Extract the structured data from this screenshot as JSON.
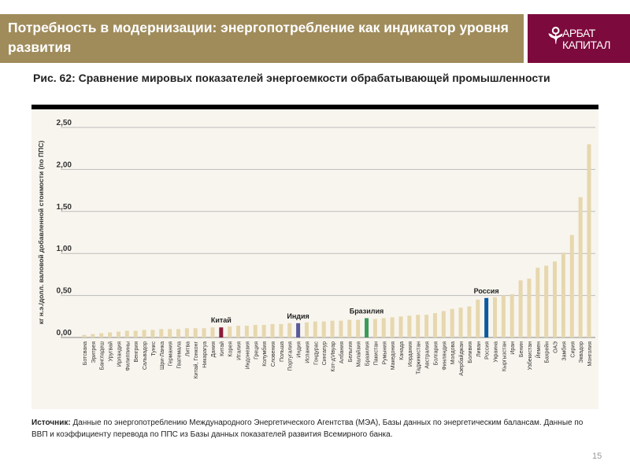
{
  "header": {
    "title": "Потребность в модернизации: энергопотребление как индикатор уровня развития"
  },
  "logo": {
    "line1": "АРБАТ",
    "line2": "КАПИТАЛ"
  },
  "figure": {
    "title": "Рис. 62: Сравнение мировых показателей энергоемкости обрабатывающей промышленности"
  },
  "source": {
    "label": "Источник:",
    "text": "Данные по энергопотреблению Международного Энергетического Агентства (МЭА), Базы данных по энергетическим балансам.  Данные по ВВП и коэффициенту перевода по ППС из Базы данных показателей развития Всемирного банка."
  },
  "page_number": "15",
  "colors": {
    "bar": "#e6d7ae",
    "china": "#8b1a3a",
    "india": "#5a5a9a",
    "brazil": "#3a9a5a",
    "russia": "#0a5aa0",
    "header": "#a08c5b",
    "logo": "#7d0a3c"
  },
  "chart_data": {
    "type": "bar",
    "title": "Рис. 62: Сравнение мировых показателей энергоемкости обрабатывающей промышленности",
    "ylabel": "кг н.э./долл. валовой добавленной стоимости (по ППС)",
    "ylim": [
      0,
      2.5
    ],
    "yticks": [
      "0,00",
      "0,50",
      "1,00",
      "1,50",
      "2,00",
      "2,50"
    ],
    "grid": true,
    "categories": [
      "Ботсвана",
      "Эритрея",
      "Бангладеш",
      "Уругвай",
      "Ирландия",
      "Филиппины",
      "Венгрия",
      "Сальвадор",
      "Тунис",
      "Шри-Ланка",
      "Германия",
      "Гватемала",
      "Литва",
      "Китай, Гонконг",
      "Никарагуа",
      "Дания",
      "Китай",
      "Корея",
      "Италия",
      "Индонезия",
      "Греция",
      "Колумбия",
      "Словения",
      "Польша",
      "Португалия",
      "Индия",
      "Испания",
      "Гондурас",
      "Сингапур",
      "Кот-д'Ивуар",
      "Албания",
      "Бельгия",
      "Малайзия",
      "Бразилия",
      "Пакистан",
      "Румыния",
      "Македония",
      "Канада",
      "Иордания",
      "Таджикистан",
      "Австралия",
      "Болгария",
      "Финляндия",
      "Молдова",
      "Азербайджан",
      "Боливия",
      "Ливан",
      "Россия",
      "Украина",
      "Кыргызстан",
      "Иран",
      "Бенин",
      "Узбекистан",
      "Йемен",
      "Бахрейн",
      "ОАЭ",
      "Замбия",
      "Сирия",
      "Эквадор",
      "Монголия"
    ],
    "values": [
      0.03,
      0.04,
      0.05,
      0.06,
      0.07,
      0.08,
      0.08,
      0.09,
      0.09,
      0.1,
      0.1,
      0.1,
      0.11,
      0.11,
      0.11,
      0.12,
      0.12,
      0.13,
      0.14,
      0.14,
      0.15,
      0.15,
      0.16,
      0.16,
      0.17,
      0.17,
      0.18,
      0.19,
      0.19,
      0.2,
      0.2,
      0.21,
      0.21,
      0.23,
      0.22,
      0.23,
      0.24,
      0.25,
      0.26,
      0.27,
      0.27,
      0.29,
      0.315,
      0.34,
      0.355,
      0.37,
      0.45,
      0.47,
      0.48,
      0.5,
      0.515,
      0.68,
      0.7,
      0.83,
      0.855,
      0.905,
      1.01,
      1.22,
      1.67,
      2.3
    ],
    "highlights": [
      {
        "category": "Китай",
        "label": "Китай",
        "color": "#8b1a3a"
      },
      {
        "category": "Индия",
        "label": "Индия",
        "color": "#5a5a9a"
      },
      {
        "category": "Бразилия",
        "label": "Бразилия",
        "color": "#3a9a5a"
      },
      {
        "category": "Россия",
        "label": "Россия",
        "color": "#0a5aa0"
      }
    ]
  }
}
